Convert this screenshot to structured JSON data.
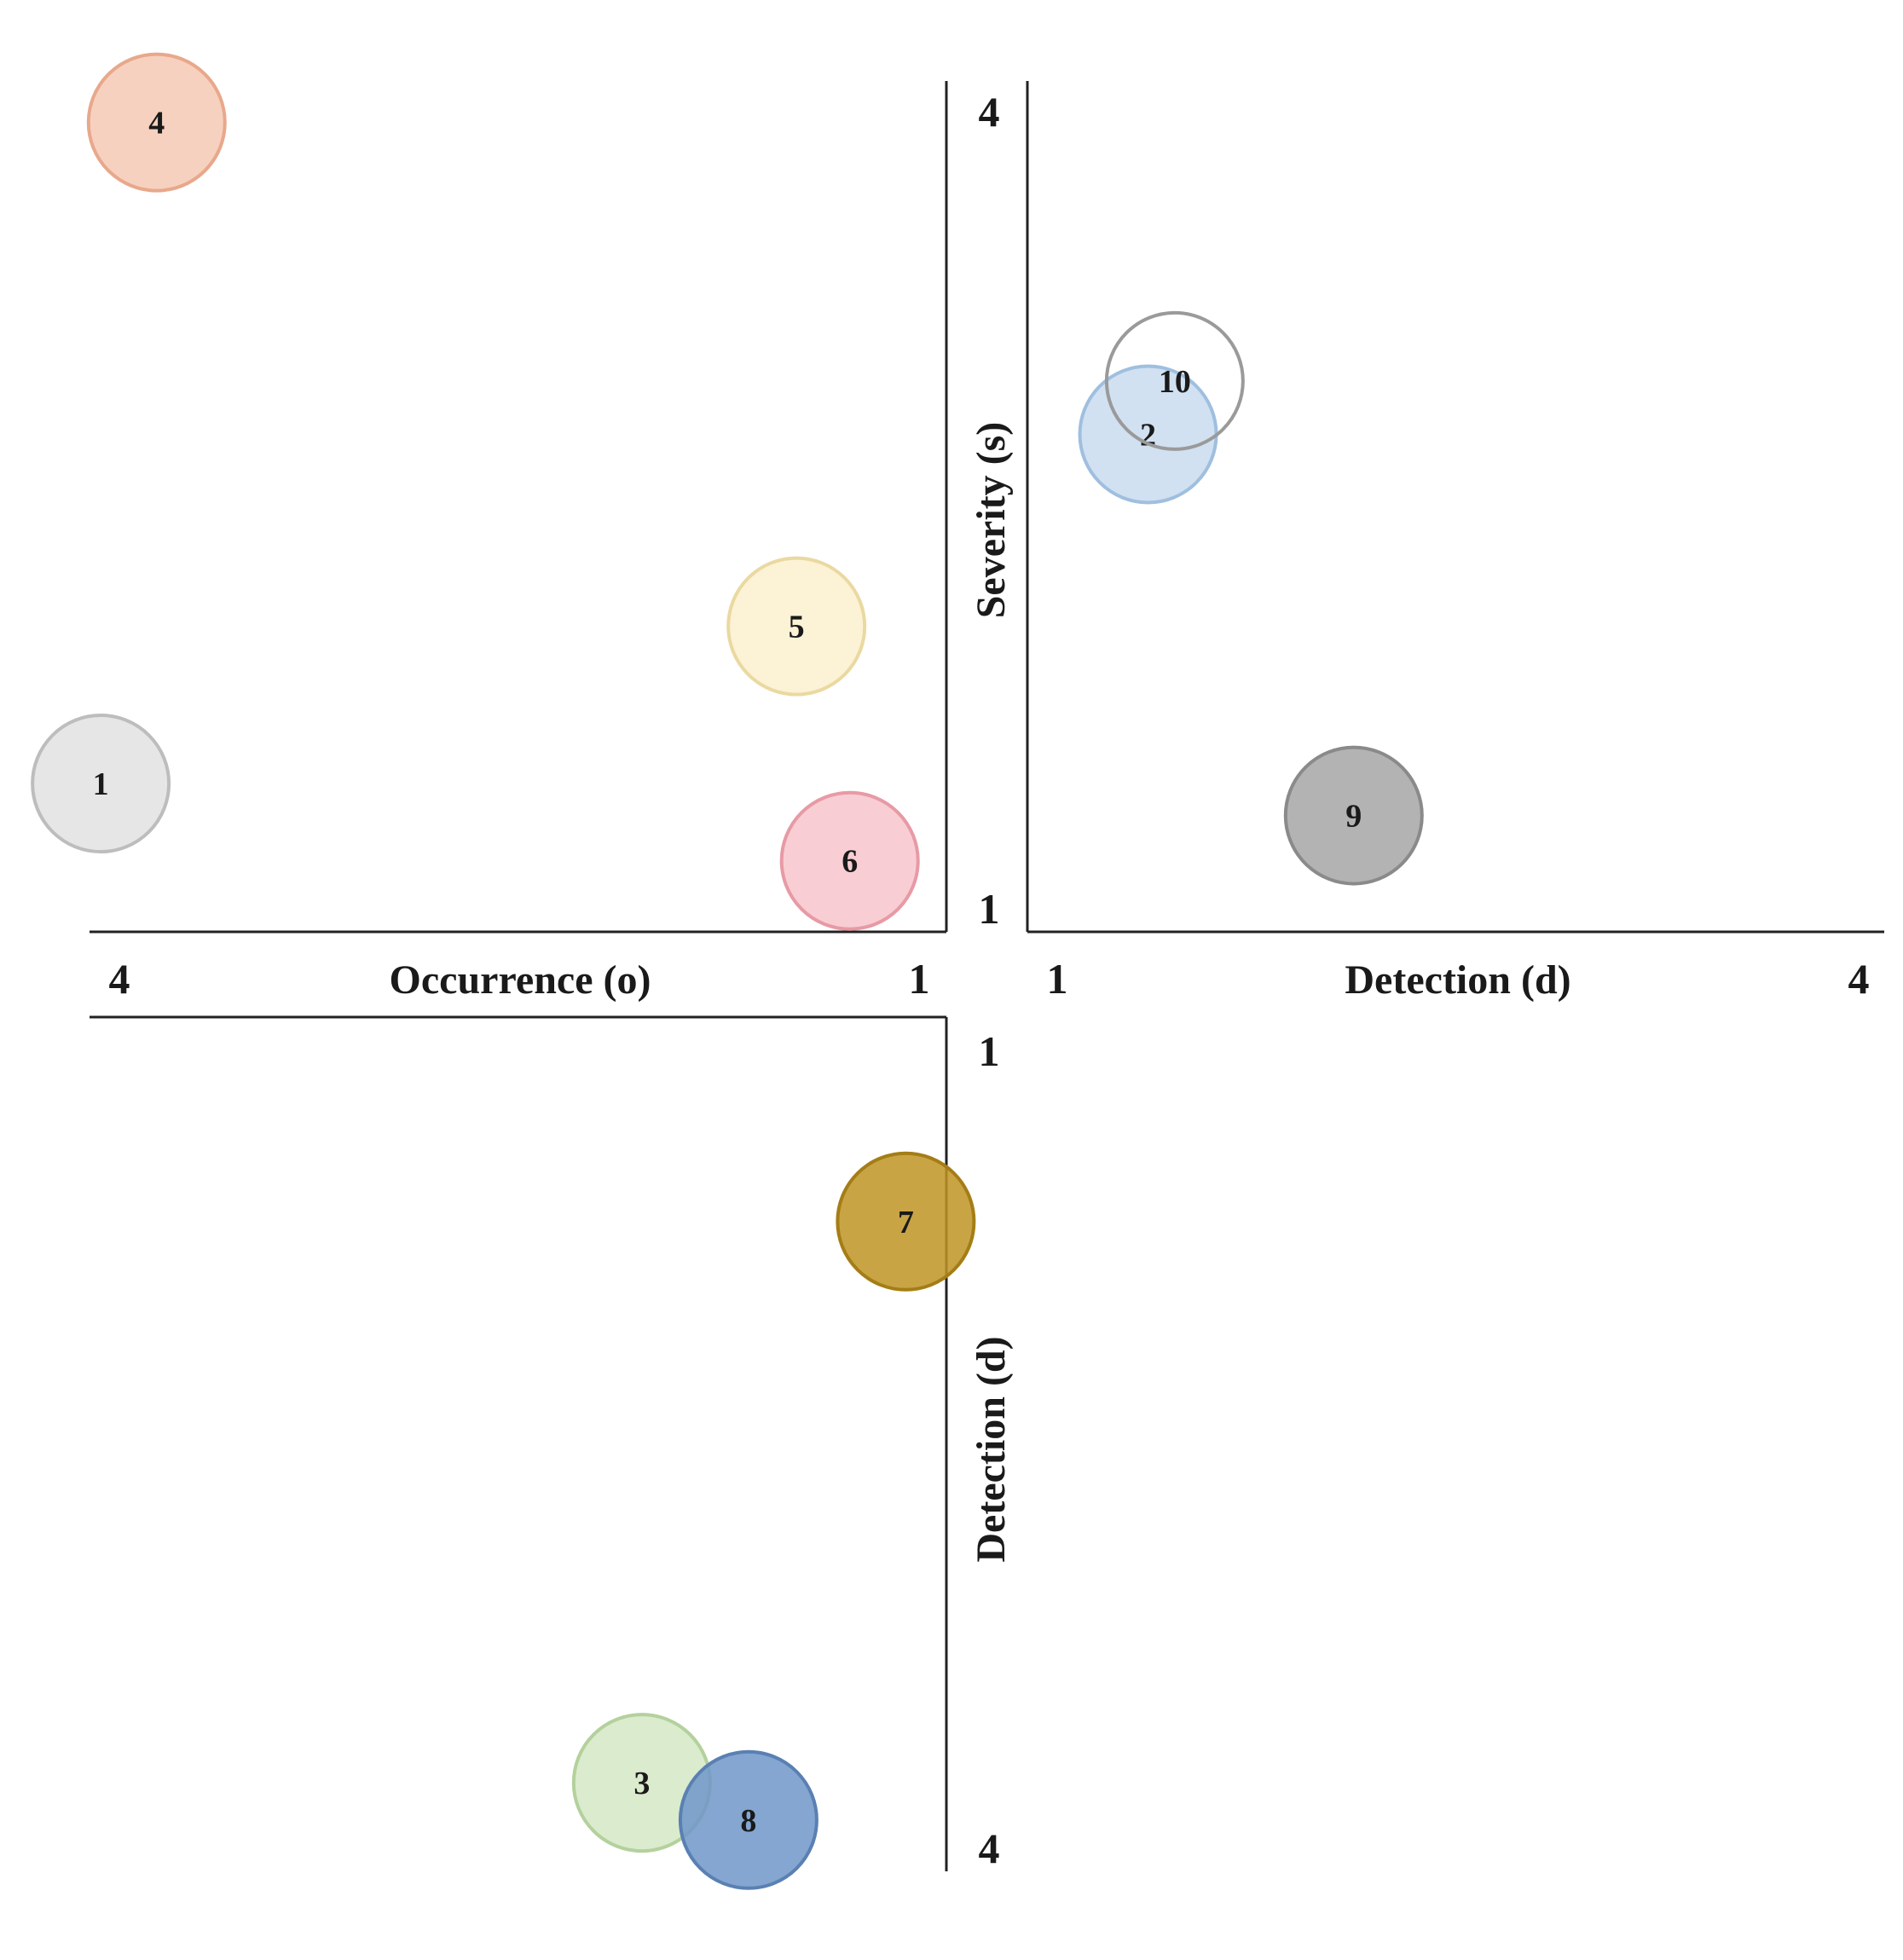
{
  "chart_data": {
    "type": "scatter",
    "subtype": "bubble-quadrant",
    "title": "",
    "panels": [
      {
        "id": "occurrence-severity",
        "xlabel": "Occurrence (o)",
        "ylabel": "Severity (s)",
        "xlim": [
          1,
          4
        ],
        "ylim": [
          1,
          4
        ],
        "x_direction": "reversed",
        "xticks": [
          "1",
          "4"
        ],
        "yticks": [
          "1",
          "4"
        ],
        "points": [
          {
            "label": "4",
            "x": 3.86,
            "y": 3.95,
            "color": "#f6c9b4",
            "stroke": "#e8a88b"
          },
          {
            "label": "5",
            "x": 1.46,
            "y": 2.06,
            "color": "#fbf0cf",
            "stroke": "#ead9a0"
          },
          {
            "label": "1",
            "x": 4.07,
            "y": 1.47,
            "color": "#e2e2e2",
            "stroke": "#bdbdbd"
          },
          {
            "label": "6",
            "x": 1.26,
            "y": 1.18,
            "color": "#f7c5cc",
            "stroke": "#e79aa5"
          }
        ]
      },
      {
        "id": "detection-severity",
        "xlabel": "Detection (d)",
        "ylabel": "Severity (s)",
        "xlim": [
          1,
          4
        ],
        "ylim": [
          1,
          4
        ],
        "x_direction": "normal",
        "xticks": [
          "1",
          "4"
        ],
        "points": [
          {
            "label": "2",
            "x": 1.34,
            "y": 2.78,
            "color": "#c9dcef",
            "stroke": "#9fbfdf"
          },
          {
            "label": "10",
            "x": 1.44,
            "y": 2.98,
            "color": "none",
            "stroke": "#9a9a9a"
          },
          {
            "label": "9",
            "x": 2.11,
            "y": 1.35,
            "color": "#a6a6a6",
            "stroke": "#8a8a8a"
          }
        ]
      },
      {
        "id": "occurrence-detection",
        "xlabel": "",
        "ylabel": "Detection (d)",
        "xlim": [
          1,
          4
        ],
        "ylim": [
          1,
          4
        ],
        "x_direction": "reversed",
        "y_direction": "downward",
        "yticks": [
          "1",
          "4"
        ],
        "points": [
          {
            "label": "7",
            "x": 1.05,
            "y": 1.65,
            "color": "#bf9424",
            "stroke": "#a47d15"
          },
          {
            "label": "3",
            "x": 2.04,
            "y": 3.76,
            "color": "#d5e8c6",
            "stroke": "#b4d19c"
          },
          {
            "label": "8",
            "x": 1.64,
            "y": 3.9,
            "color": "#6f97c9",
            "stroke": "#5a80b3"
          }
        ]
      }
    ]
  }
}
